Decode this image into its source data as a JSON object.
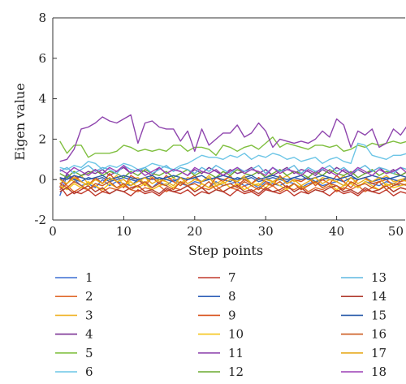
{
  "chart_data": {
    "type": "line",
    "xlabel": "Step points",
    "ylabel": "Eigen value",
    "xlim": [
      0,
      50
    ],
    "ylim": [
      -2,
      8
    ],
    "xticks": [
      0,
      10,
      20,
      30,
      40,
      50
    ],
    "yticks": [
      -2,
      0,
      2,
      4,
      6,
      8
    ],
    "grid": false,
    "legend_position": "bottom",
    "x": [
      1,
      2,
      3,
      4,
      5,
      6,
      7,
      8,
      9,
      10,
      11,
      12,
      13,
      14,
      15,
      16,
      17,
      18,
      19,
      20,
      21,
      22,
      23,
      24,
      25,
      26,
      27,
      28,
      29,
      30,
      31,
      32,
      33,
      34,
      35,
      36,
      37,
      38,
      39,
      40,
      41,
      42,
      43,
      44,
      45,
      46,
      47,
      48,
      49,
      50
    ],
    "series": [
      {
        "name": "1",
        "color": "#3b6fd4",
        "values": [
          -0.8,
          0.2,
          0.0,
          -0.3,
          -0.2,
          -0.4,
          0.0,
          -0.3,
          -0.1,
          -0.2,
          -0.3,
          0.0,
          -0.2,
          -0.4,
          -0.1,
          -0.3,
          0.0,
          -0.2,
          -0.3,
          -0.1,
          -0.2,
          -0.4,
          -0.1,
          -0.3,
          -0.2,
          -0.1,
          -0.3,
          -0.2,
          -0.4,
          -0.1,
          -0.2,
          -0.3,
          -0.1,
          -0.2,
          -0.4,
          -0.2,
          -0.1,
          -0.3,
          -0.2,
          -0.1,
          -0.3,
          -0.2,
          -0.4,
          -0.1,
          -0.2,
          -0.3,
          -0.1,
          -0.2,
          -0.3,
          -0.2
        ]
      },
      {
        "name": "2",
        "color": "#e06a2c",
        "values": [
          0.1,
          -0.3,
          -0.6,
          -0.4,
          -0.5,
          -0.3,
          -0.6,
          -0.4,
          -0.5,
          -0.3,
          -0.5,
          -0.6,
          -0.4,
          -0.5,
          -0.3,
          -0.6,
          -0.4,
          -0.5,
          -0.3,
          -0.6,
          -0.4,
          -0.5,
          -0.3,
          -0.6,
          -0.4,
          -0.5,
          -0.3,
          -0.6,
          -0.4,
          -0.5,
          -0.3,
          -0.6,
          -0.4,
          -0.5,
          -0.3,
          -0.6,
          -0.4,
          -0.5,
          -0.3,
          -0.6,
          -0.4,
          -0.5,
          -0.3,
          -0.6,
          -0.4,
          -0.5,
          -0.3,
          -0.6,
          -0.4,
          -0.5
        ]
      },
      {
        "name": "3",
        "color": "#f0b429",
        "values": [
          -0.2,
          0.1,
          -0.1,
          0.2,
          -0.2,
          0.0,
          0.1,
          -0.1,
          0.2,
          -0.3,
          0.0,
          0.1,
          -0.2,
          0.2,
          -0.1,
          0.0,
          0.1,
          -0.2,
          0.1,
          0.0,
          -0.1,
          0.2,
          -0.2,
          0.0,
          0.1,
          -0.1,
          0.2,
          -0.2,
          0.0,
          0.1,
          -0.1,
          0.0,
          0.2,
          -0.1,
          0.0,
          0.1,
          -0.2,
          0.1,
          0.0,
          -0.1,
          0.2,
          -0.2,
          0.0,
          0.1,
          -0.1,
          0.0,
          0.2,
          -0.1,
          0.0,
          0.1
        ]
      },
      {
        "name": "4",
        "color": "#7b3294",
        "values": [
          -0.4,
          0.3,
          0.0,
          0.2,
          0.4,
          0.3,
          0.5,
          0.2,
          0.4,
          0.6,
          0.3,
          0.5,
          0.4,
          0.2,
          0.6,
          0.3,
          0.5,
          0.4,
          0.2,
          0.5,
          0.3,
          0.6,
          0.4,
          0.2,
          0.5,
          0.3,
          0.4,
          0.6,
          0.3,
          0.5,
          0.2,
          0.4,
          0.6,
          0.3,
          0.5,
          0.4,
          0.2,
          0.5,
          0.3,
          0.6,
          0.4,
          0.2,
          0.5,
          0.3,
          0.4,
          0.6,
          0.3,
          0.5,
          0.2,
          0.4
        ]
      },
      {
        "name": "5",
        "color": "#7fbf3f",
        "values": [
          1.9,
          1.3,
          1.7,
          1.7,
          1.1,
          1.3,
          1.3,
          1.3,
          1.4,
          1.7,
          1.6,
          1.4,
          1.5,
          1.4,
          1.5,
          1.4,
          1.7,
          1.7,
          1.4,
          1.6,
          1.6,
          1.5,
          1.2,
          1.7,
          1.6,
          1.4,
          1.6,
          1.7,
          1.5,
          1.8,
          2.1,
          1.6,
          1.8,
          1.7,
          1.6,
          1.5,
          1.7,
          1.7,
          1.6,
          1.7,
          1.4,
          1.5,
          1.7,
          1.6,
          1.8,
          1.7,
          1.8,
          1.9,
          1.8,
          1.9
        ]
      },
      {
        "name": "6",
        "color": "#6cc5e6",
        "values": [
          0.6,
          0.5,
          0.7,
          0.6,
          0.9,
          0.8,
          0.5,
          0.7,
          0.6,
          0.8,
          0.7,
          0.5,
          0.6,
          0.8,
          0.7,
          0.6,
          0.5,
          0.7,
          0.8,
          1.0,
          1.2,
          1.1,
          1.1,
          1.0,
          1.2,
          1.1,
          1.3,
          1.0,
          1.2,
          1.1,
          1.3,
          1.2,
          1.0,
          1.1,
          0.9,
          1.0,
          1.1,
          0.8,
          1.0,
          1.1,
          0.9,
          0.8,
          1.8,
          1.7,
          1.2,
          1.1,
          1.0,
          1.2,
          1.2,
          1.3
        ]
      },
      {
        "name": "7",
        "color": "#c0392b",
        "values": [
          -0.3,
          -0.8,
          -0.6,
          -0.7,
          -0.5,
          -0.8,
          -0.6,
          -0.7,
          -0.5,
          -0.6,
          -0.8,
          -0.5,
          -0.7,
          -0.6,
          -0.8,
          -0.5,
          -0.6,
          -0.7,
          -0.5,
          -0.8,
          -0.6,
          -0.7,
          -0.5,
          -0.6,
          -0.8,
          -0.5,
          -0.7,
          -0.6,
          -0.8,
          -0.5,
          -0.6,
          -0.7,
          -0.5,
          -0.8,
          -0.6,
          -0.7,
          -0.5,
          -0.6,
          -0.8,
          -0.5,
          -0.7,
          -0.6,
          -0.8,
          -0.5,
          -0.6,
          -0.7,
          -0.5,
          -0.8,
          -0.6,
          -0.7
        ]
      },
      {
        "name": "8",
        "color": "#2e5fb8",
        "values": [
          0.0,
          0.1,
          0.0,
          -0.1,
          0.1,
          0.0,
          0.1,
          -0.1,
          0.0,
          0.1,
          0.0,
          -0.1,
          0.1,
          0.0,
          0.1,
          0.0,
          -0.1,
          0.1,
          0.0,
          0.1,
          -0.1,
          0.0,
          0.1,
          0.0,
          -0.1,
          0.1,
          0.0,
          0.1,
          -0.1,
          0.0,
          0.1,
          0.0,
          -0.1,
          0.1,
          0.0,
          0.1,
          -0.1,
          0.0,
          0.1,
          0.0,
          -0.1,
          0.1,
          0.0,
          0.1,
          -0.1,
          0.0,
          0.1,
          0.0,
          -0.1,
          0.1
        ]
      },
      {
        "name": "9",
        "color": "#d9541e",
        "values": [
          -0.5,
          -0.2,
          0.2,
          -0.1,
          -0.3,
          0.1,
          -0.2,
          0.3,
          -0.1,
          -0.4,
          0.2,
          0.0,
          -0.3,
          0.1,
          -0.2,
          0.2,
          -0.1,
          -0.3,
          0.0,
          0.2,
          -0.2,
          -0.4,
          0.1,
          -0.1,
          0.2,
          -0.3,
          0.0,
          -0.2,
          0.1,
          -0.1,
          -0.3,
          0.2,
          -0.2,
          0.0,
          -0.1,
          0.1,
          -0.3,
          0.0,
          -0.2,
          0.2,
          -0.1,
          -0.4,
          0.0,
          0.1,
          -0.2,
          -0.1,
          0.0,
          -0.3,
          -0.1,
          0.0
        ]
      },
      {
        "name": "10",
        "color": "#f5c518",
        "values": [
          -0.3,
          -0.5,
          -0.2,
          -0.4,
          -0.1,
          -0.3,
          -0.5,
          -0.2,
          -0.4,
          -0.3,
          -0.1,
          -0.4,
          -0.2,
          -0.5,
          -0.3,
          -0.2,
          -0.4,
          -0.1,
          -0.3,
          -0.5,
          -0.2,
          -0.4,
          -0.3,
          -0.1,
          -0.4,
          -0.2,
          -0.5,
          -0.3,
          -0.2,
          -0.4,
          -0.1,
          -0.3,
          -0.5,
          -0.2,
          -0.4,
          -0.3,
          -0.1,
          -0.4,
          -0.2,
          -0.5,
          -0.3,
          -0.2,
          -0.4,
          -0.1,
          -0.3,
          -0.5,
          -0.2,
          -0.4,
          -0.3,
          -0.2
        ]
      },
      {
        "name": "11",
        "color": "#8e44ad",
        "values": [
          0.9,
          1.0,
          1.5,
          2.5,
          2.6,
          2.8,
          3.1,
          2.9,
          2.8,
          3.0,
          3.2,
          1.8,
          2.8,
          2.9,
          2.6,
          2.5,
          2.5,
          1.9,
          2.4,
          1.4,
          2.5,
          1.7,
          2.0,
          2.3,
          2.3,
          2.7,
          2.1,
          2.3,
          2.8,
          2.4,
          1.6,
          2.0,
          1.9,
          1.8,
          1.9,
          1.8,
          2.0,
          2.4,
          2.1,
          3.0,
          2.7,
          1.6,
          2.4,
          2.2,
          2.5,
          1.6,
          1.8,
          2.5,
          2.2,
          2.7
        ]
      },
      {
        "name": "12",
        "color": "#6aaa2e",
        "values": [
          0.3,
          0.1,
          0.4,
          0.2,
          0.3,
          0.5,
          0.2,
          0.4,
          0.3,
          0.1,
          0.4,
          0.2,
          0.5,
          0.3,
          0.2,
          0.4,
          0.1,
          0.3,
          0.5,
          0.2,
          0.4,
          0.3,
          0.1,
          0.4,
          0.2,
          0.5,
          0.3,
          0.2,
          0.4,
          0.1,
          0.3,
          0.5,
          0.2,
          0.4,
          0.3,
          0.1,
          0.4,
          0.2,
          0.5,
          0.3,
          0.2,
          0.4,
          0.1,
          0.3,
          0.5,
          0.2,
          0.4,
          0.3,
          0.2,
          0.4
        ]
      },
      {
        "name": "13",
        "color": "#5fb8e0",
        "values": [
          0.4,
          0.6,
          0.3,
          0.5,
          0.7,
          0.4,
          0.6,
          0.5,
          0.3,
          0.7,
          0.5,
          0.4,
          0.6,
          0.3,
          0.5,
          0.7,
          0.4,
          0.6,
          0.5,
          0.3,
          0.6,
          0.4,
          0.7,
          0.5,
          0.3,
          0.6,
          0.4,
          0.5,
          0.7,
          0.3,
          0.6,
          0.4,
          0.5,
          0.7,
          0.3,
          0.6,
          0.4,
          0.5,
          0.7,
          0.4,
          0.6,
          0.3,
          0.5,
          0.7,
          0.4,
          0.6,
          0.5,
          0.3,
          0.6,
          0.5
        ]
      },
      {
        "name": "14",
        "color": "#b03a2e",
        "values": [
          -0.6,
          -0.4,
          -0.7,
          -0.5,
          -0.3,
          -0.6,
          -0.4,
          -0.7,
          -0.5,
          -0.6,
          -0.4,
          -0.3,
          -0.6,
          -0.5,
          -0.7,
          -0.4,
          -0.6,
          -0.5,
          -0.3,
          -0.6,
          -0.4,
          -0.7,
          -0.5,
          -0.6,
          -0.4,
          -0.3,
          -0.6,
          -0.5,
          -0.7,
          -0.4,
          -0.6,
          -0.5,
          -0.3,
          -0.6,
          -0.4,
          -0.7,
          -0.5,
          -0.6,
          -0.4,
          -0.3,
          -0.6,
          -0.5,
          -0.7,
          -0.4,
          -0.6,
          -0.5,
          -0.3,
          -0.6,
          -0.4,
          -0.5
        ]
      },
      {
        "name": "15",
        "color": "#2a5caa",
        "values": [
          0.1,
          0.0,
          0.2,
          0.1,
          0.0,
          0.1,
          0.2,
          0.0,
          0.1,
          0.2,
          0.1,
          0.0,
          0.1,
          0.2,
          0.0,
          0.1,
          0.2,
          0.1,
          0.0,
          0.1,
          0.2,
          0.0,
          0.1,
          0.2,
          0.1,
          0.0,
          0.1,
          0.2,
          0.0,
          0.1,
          0.2,
          0.1,
          0.0,
          0.1,
          0.2,
          0.0,
          0.1,
          0.2,
          0.1,
          0.0,
          0.1,
          0.2,
          0.0,
          0.1,
          0.2,
          0.1,
          0.0,
          0.1,
          0.2,
          0.1
        ]
      },
      {
        "name": "16",
        "color": "#cc5a1f",
        "values": [
          -0.2,
          -0.4,
          -0.1,
          -0.3,
          -0.5,
          -0.2,
          -0.3,
          -0.1,
          -0.4,
          -0.2,
          -0.5,
          -0.3,
          -0.1,
          -0.4,
          -0.2,
          -0.3,
          -0.5,
          -0.1,
          -0.3,
          -0.2,
          -0.4,
          -0.1,
          -0.5,
          -0.3,
          -0.2,
          -0.4,
          -0.1,
          -0.3,
          -0.5,
          -0.2,
          -0.3,
          -0.1,
          -0.4,
          -0.2,
          -0.5,
          -0.3,
          -0.1,
          -0.4,
          -0.2,
          -0.3,
          -0.5,
          -0.1,
          -0.3,
          -0.2,
          -0.4,
          -0.1,
          -0.5,
          -0.3,
          -0.2,
          -0.3
        ]
      },
      {
        "name": "17",
        "color": "#e6a817",
        "values": [
          0.0,
          -0.2,
          0.1,
          -0.1,
          -0.3,
          0.0,
          -0.2,
          0.1,
          -0.1,
          0.0,
          -0.3,
          -0.1,
          0.1,
          -0.2,
          0.0,
          -0.1,
          -0.3,
          0.1,
          -0.2,
          0.0,
          -0.1,
          0.1,
          -0.3,
          -0.2,
          0.0,
          -0.1,
          0.1,
          -0.2,
          -0.3,
          0.0,
          -0.1,
          0.1,
          -0.2,
          0.0,
          -0.3,
          -0.1,
          0.1,
          -0.2,
          0.0,
          -0.1,
          -0.3,
          0.1,
          -0.2,
          0.0,
          -0.1,
          0.1,
          -0.3,
          -0.2,
          0.0,
          -0.1
        ]
      },
      {
        "name": "18",
        "color": "#9b3fb5",
        "values": [
          0.5,
          0.3,
          0.6,
          0.4,
          0.2,
          0.5,
          0.3,
          0.6,
          0.4,
          0.7,
          0.3,
          0.5,
          0.2,
          0.4,
          0.6,
          0.3,
          0.5,
          0.4,
          0.2,
          0.6,
          0.4,
          0.3,
          0.5,
          0.2,
          0.4,
          0.6,
          0.3,
          0.5,
          0.4,
          0.2,
          0.6,
          0.3,
          0.5,
          0.4,
          0.2,
          0.5,
          0.3,
          0.6,
          0.4,
          0.2,
          0.5,
          0.3,
          0.6,
          0.4,
          0.2,
          0.5,
          0.3,
          0.4,
          0.6,
          0.3
        ]
      }
    ]
  }
}
